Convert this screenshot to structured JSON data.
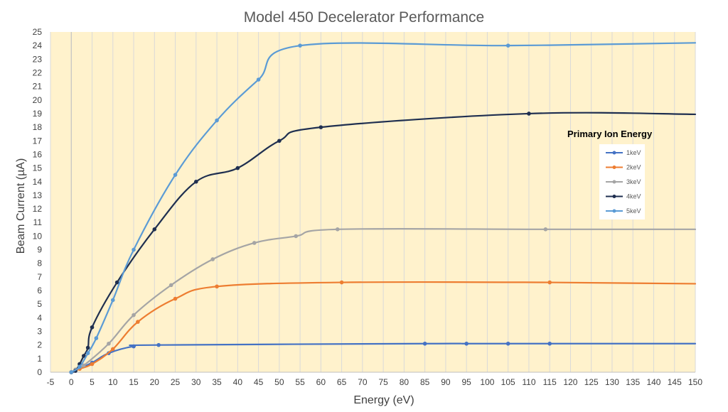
{
  "chart_data": {
    "type": "line",
    "title": "Model 450 Decelerator Performance",
    "xlabel": "Energy (eV)",
    "ylabel": "Beam Current (µA)",
    "xlim": [
      -5,
      150
    ],
    "ylim": [
      0,
      25
    ],
    "x_ticks": [
      "-5",
      "0",
      "5",
      "10",
      "15",
      "20",
      "25",
      "30",
      "35",
      "40",
      "45",
      "50",
      "55",
      "60",
      "65",
      "70",
      "75",
      "80",
      "85",
      "90",
      "95",
      "100",
      "105",
      "110",
      "115",
      "120",
      "125",
      "130",
      "135",
      "140",
      "145",
      "150"
    ],
    "y_ticks": [
      "0",
      "1",
      "2",
      "3",
      "4",
      "5",
      "6",
      "7",
      "8",
      "9",
      "10",
      "11",
      "12",
      "13",
      "14",
      "15",
      "16",
      "17",
      "18",
      "19",
      "20",
      "21",
      "22",
      "23",
      "24",
      "25"
    ],
    "grid": "vertical",
    "legend_title": "Primary Ion Energy",
    "legend_position": "right",
    "series": [
      {
        "name": "1keV",
        "color": "#4472C4",
        "points": [
          [
            0,
            0
          ],
          [
            1,
            0.15
          ],
          [
            5,
            0.7
          ],
          [
            9,
            1.4
          ],
          [
            15,
            1.9
          ],
          [
            21,
            2.0
          ],
          [
            85,
            2.1
          ],
          [
            95,
            2.1
          ],
          [
            105,
            2.1
          ],
          [
            115,
            2.1
          ]
        ],
        "curve_to": [
          150,
          2.1
        ]
      },
      {
        "name": "2keV",
        "color": "#ED7D31",
        "points": [
          [
            0,
            0
          ],
          [
            2,
            0.25
          ],
          [
            5,
            0.6
          ],
          [
            10,
            1.7
          ],
          [
            16,
            3.7
          ],
          [
            25,
            5.4
          ],
          [
            35,
            6.3
          ],
          [
            65,
            6.6
          ],
          [
            115,
            6.6
          ]
        ],
        "curve_to": [
          150,
          6.5
        ]
      },
      {
        "name": "3keV",
        "color": "#A5A5A5",
        "points": [
          [
            0,
            0
          ],
          [
            1,
            0.2
          ],
          [
            3,
            0.5
          ],
          [
            9,
            2.1
          ],
          [
            15,
            4.2
          ],
          [
            24,
            6.4
          ],
          [
            34,
            8.3
          ],
          [
            44,
            9.5
          ],
          [
            54,
            10.0
          ],
          [
            64,
            10.5
          ],
          [
            114,
            10.5
          ]
        ],
        "curve_to": [
          150,
          10.5
        ]
      },
      {
        "name": "4keV",
        "color": "#1F2F50",
        "points": [
          [
            0,
            0
          ],
          [
            1,
            0.1
          ],
          [
            2,
            0.6
          ],
          [
            3,
            1.2
          ],
          [
            4,
            1.8
          ],
          [
            5,
            3.3
          ],
          [
            11,
            6.6
          ],
          [
            20,
            10.5
          ],
          [
            30,
            14.0
          ],
          [
            40,
            15.0
          ],
          [
            50,
            17.0
          ],
          [
            60,
            18.0
          ],
          [
            110,
            19.0
          ]
        ],
        "curve_to": [
          150,
          18.95
        ]
      },
      {
        "name": "5keV",
        "color": "#5B9BD5",
        "points": [
          [
            0,
            0
          ],
          [
            2,
            0.4
          ],
          [
            4,
            1.4
          ],
          [
            6,
            2.5
          ],
          [
            10,
            5.3
          ],
          [
            15,
            9.0
          ],
          [
            25,
            14.5
          ],
          [
            35,
            18.5
          ],
          [
            45,
            21.5
          ],
          [
            55,
            24.0
          ],
          [
            105,
            24.0
          ]
        ],
        "curve_to": [
          150,
          24.2
        ]
      }
    ]
  }
}
